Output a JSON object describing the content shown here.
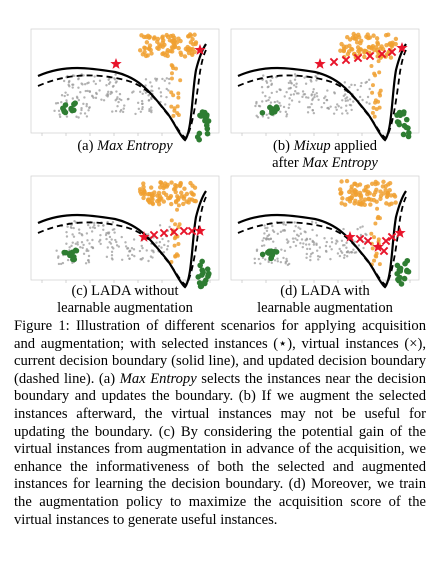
{
  "panels": [
    {
      "id": "a",
      "caption_prefix": "(a) ",
      "caption_em": "Max Entropy",
      "caption_rest": "",
      "mode": "a"
    },
    {
      "id": "b",
      "caption_prefix": "(b) ",
      "caption_em": "Mixup",
      "caption_rest": " applied",
      "caption_line2_prefix": "after ",
      "caption_line2_em": "Max Entropy",
      "mode": "b"
    },
    {
      "id": "c",
      "caption_line1": "(c) LADA without",
      "caption_line2": "learnable augmentation",
      "mode": "c"
    },
    {
      "id": "d",
      "caption_line1": "(d) LADA with",
      "caption_line2": "learnable augmentation",
      "mode": "d"
    }
  ],
  "caption": {
    "label": "Figure 1:",
    "t1": " Illustration of different scenarios for applying acquisition and augmentation; with selected instances (⋆), virtual instances (×), current decision boundary (solid line), and updated decision boundary (dashed line). (a) ",
    "em1": "Max Entropy",
    "t2": " selects the instances near the decision boundary and updates the boundary. (b) If we augment the selected instances afterward, the virtual instances may not be useful for updating the boundary. (c) By considering the potential gain of the virtual instances from augmentation in advance of the acquisition, we enhance the informativeness of both the selected and augmented instances for learning the decision boundary. (d) Moreover, we train the augmentation policy to maximize the acquisition score of the virtual instances to generate useful instances."
  },
  "colors": {
    "orange": "#f0a030",
    "gray": "#9a9a9a",
    "green": "#2e7d32",
    "red": "#e8142a"
  }
}
